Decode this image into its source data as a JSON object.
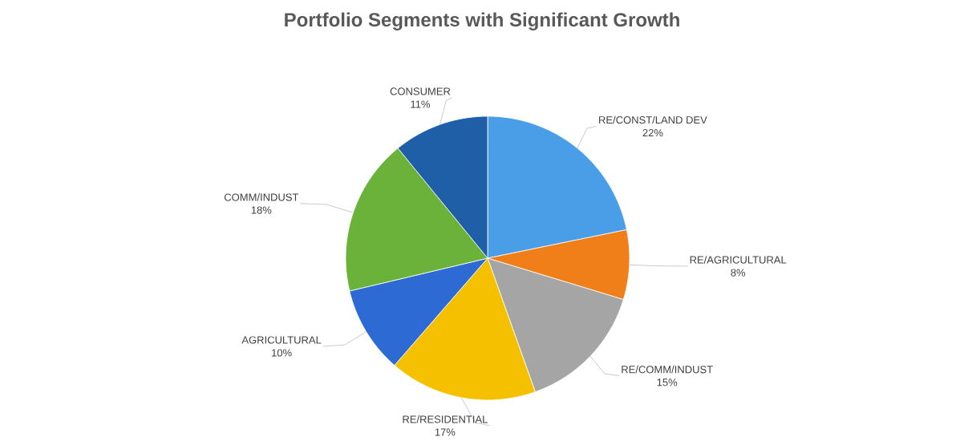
{
  "chart_data": {
    "type": "pie",
    "title": "Portfolio Segments with Significant Growth",
    "categories": [
      "RE/CONST/LAND DEV",
      "RE/AGRICULTURAL",
      "RE/COMM/INDUST",
      "RE/RESIDENTIAL",
      "AGRICULTURAL",
      "COMM/INDUST",
      "CONSUMER"
    ],
    "values": [
      22,
      8,
      15,
      17,
      10,
      18,
      11
    ],
    "value_labels": [
      "22%",
      "8%",
      "15%",
      "17%",
      "10%",
      "18%",
      "11%"
    ],
    "colors": [
      "#4a9ee8",
      "#f07f1a",
      "#a5a5a5",
      "#f5c000",
      "#2e6ad4",
      "#6bb23a",
      "#1f5fa8"
    ]
  }
}
